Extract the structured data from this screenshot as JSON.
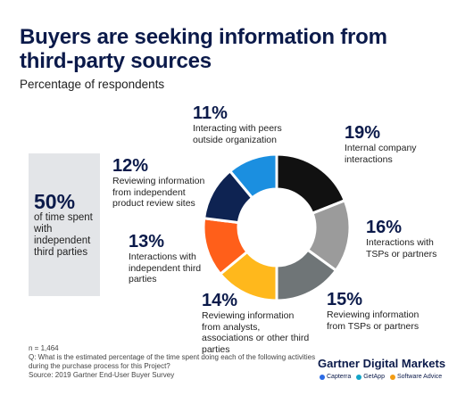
{
  "title": "Buyers are seeking information from third-party sources",
  "subtitle": "Percentage of respondents",
  "side": {
    "big": "50%",
    "text": "of time spent with independent third parties"
  },
  "chart_data": {
    "type": "pie",
    "style": "donut",
    "slices": [
      {
        "label": "Internal company interactions",
        "value": 19,
        "display": "19%",
        "color": "#111111"
      },
      {
        "label": "Interactions with TSPs or partners",
        "value": 16,
        "display": "16%",
        "color": "#9b9b9b"
      },
      {
        "label": "Reviewing information from TSPs or partners",
        "value": 15,
        "display": "15%",
        "color": "#6f7577"
      },
      {
        "label": "Reviewing information from analysts, associations or other third parties",
        "value": 14,
        "display": "14%",
        "color": "#ffb81c"
      },
      {
        "label": "Interactions with independent third parties",
        "value": 13,
        "display": "13%",
        "color": "#ff5f1a"
      },
      {
        "label": "Reviewing information from independent product review sites",
        "value": 12,
        "display": "12%",
        "color": "#0e2352"
      },
      {
        "label": "Interacting with peers outside organization",
        "value": 11,
        "display": "11%",
        "color": "#1b8fe0"
      }
    ]
  },
  "footer": {
    "n": "n = 1,464",
    "q": "Q: What is the estimated percentage of the time spent doing each of the following activities during the purchase process for this Project?",
    "source": "Source: 2019 Gartner End-User Buyer Survey"
  },
  "brand": "Gartner Digital Markets",
  "partners": [
    {
      "name": "Capterra",
      "color": "#2b6be6"
    },
    {
      "name": "GetApp",
      "color": "#12a4c8"
    },
    {
      "name": "Software Advice",
      "color": "#f39c12"
    }
  ]
}
